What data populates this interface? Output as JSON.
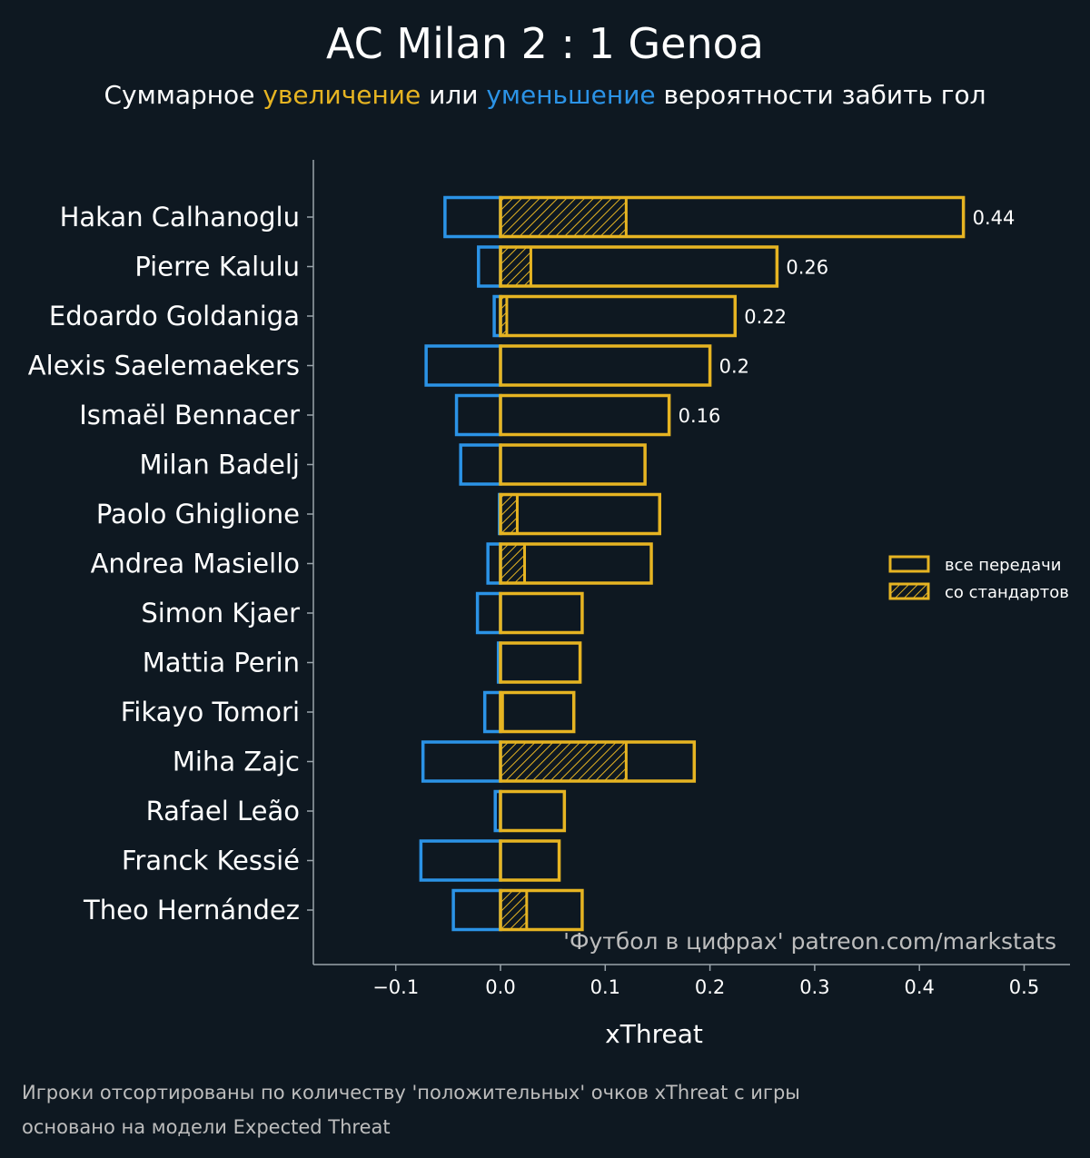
{
  "title": "AC Milan 2 : 1 Genoa",
  "subtitle": {
    "part1": "Суммарное ",
    "increase": "увеличение",
    "part2": " или ",
    "decrease": "уменьшение",
    "part3": " вероятности забить гол"
  },
  "colors": {
    "background": "#0e1821",
    "positive": "#e6b422",
    "negative": "#2b93e6",
    "axis": "#9aa4ab",
    "text": "#ffffff",
    "muted": "#bdbdbd"
  },
  "chart_data": {
    "type": "bar",
    "orientation": "horizontal",
    "xlabel": "xThreat",
    "xlim": [
      -0.18,
      0.545
    ],
    "xticks": [
      -0.1,
      0.0,
      0.1,
      0.2,
      0.3,
      0.4,
      0.5
    ],
    "xtick_labels": [
      "−0.1",
      "0.0",
      "0.1",
      "0.2",
      "0.3",
      "0.4",
      "0.5"
    ],
    "categories": [
      "Hakan Calhanoglu",
      "Pierre Kalulu",
      "Edoardo Goldaniga",
      "Alexis Saelemaekers",
      "Ismaël Bennacer",
      "Milan Badelj",
      "Paolo Ghiglione",
      "Andrea Masiello",
      "Simon Kjaer",
      "Mattia Perin",
      "Fikayo Tomori",
      "Miha Zajc",
      "Rafael Leão",
      "Franck Kessié",
      "Theo Hernández"
    ],
    "series": [
      {
        "name": "все передачи",
        "kind": "positive",
        "values": [
          0.442,
          0.264,
          0.224,
          0.2,
          0.161,
          0.138,
          0.152,
          0.144,
          0.078,
          0.076,
          0.07,
          0.185,
          0.061,
          0.056,
          0.078
        ]
      },
      {
        "name": "со стандартов",
        "kind": "set-pieces",
        "values": [
          0.12,
          0.029,
          0.006,
          0,
          0,
          0,
          0.016,
          0.023,
          0,
          0,
          0.002,
          0.12,
          0,
          0,
          0.025
        ]
      },
      {
        "name": "negative",
        "kind": "negative",
        "values": [
          -0.053,
          -0.021,
          -0.006,
          -0.071,
          -0.042,
          -0.038,
          -0.001,
          -0.012,
          -0.022,
          -0.002,
          -0.015,
          -0.074,
          -0.005,
          -0.076,
          -0.045
        ]
      }
    ],
    "value_labels": [
      "0.44",
      "0.26",
      "0.22",
      "0.2",
      "0.16",
      null,
      null,
      null,
      null,
      null,
      null,
      null,
      null,
      null,
      null
    ],
    "legend": {
      "position": "right",
      "entries": [
        "все передачи",
        "со стандартов"
      ]
    }
  },
  "watermark": "'Футбол в цифрах' patreon.com/markstats",
  "footnotes": [
    "Игроки отсортированы по количеству 'положительных' очков xThreat с игры",
    "основано на модели Expected Threat"
  ]
}
